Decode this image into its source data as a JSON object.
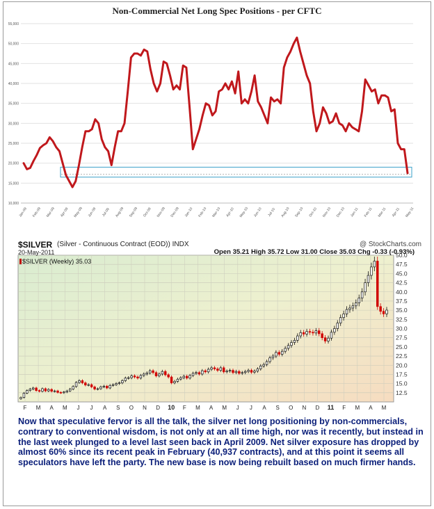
{
  "chart_data": [
    {
      "type": "line",
      "title": "Non-Commercial Net Long Spec Positions - per CFTC",
      "ylim": [
        10000,
        55000
      ],
      "y_ticks": [
        "10,000",
        "15,000",
        "20,000",
        "25,000",
        "30,000",
        "35,000",
        "40,000",
        "45,000",
        "50,000",
        "55,000"
      ],
      "x_ticks": [
        "Jan-09",
        "Feb-09",
        "Mar-09",
        "Apr-09",
        "May-09",
        "Jun-09",
        "Jul-09",
        "Aug-09",
        "Sep-09",
        "Oct-09",
        "Nov-09",
        "Dec-09",
        "Jan-10",
        "Feb-10",
        "Mar-10",
        "Apr-10",
        "May-10",
        "Jun-10",
        "Jul-10",
        "Aug-10",
        "Sep-10",
        "Oct-10",
        "Nov-10",
        "Dec-10",
        "Jan-11",
        "Feb-11",
        "Mar-11",
        "Apr-11",
        "May-11"
      ],
      "line_color": "#c0181c",
      "grid": true,
      "series": [
        {
          "values": [
            20000,
            18500,
            18800,
            20500,
            22000,
            23800,
            24500,
            25000,
            26500,
            25500,
            24000,
            23000,
            20000,
            17000,
            15500,
            14000,
            15500,
            19500,
            24000,
            28000,
            28000,
            28500,
            31000,
            30000,
            26000,
            24000,
            23000,
            19500,
            24000,
            28000,
            28000,
            30000,
            38000,
            46500,
            47500,
            47500,
            47000,
            48500,
            48000,
            43500,
            40000,
            38000,
            40000,
            45500,
            45000,
            42000,
            38500,
            39500,
            38500,
            44500,
            44000,
            34000,
            23500,
            26000,
            28500,
            32000,
            35000,
            34500,
            32000,
            33000,
            38000,
            38500,
            40000,
            38500,
            40500,
            37500,
            43000,
            35000,
            36000,
            35000,
            38000,
            42000,
            35500,
            34000,
            32000,
            30000,
            36500,
            35500,
            36000,
            35000,
            44000,
            46500,
            48000,
            50000,
            51500,
            48000,
            45000,
            42000,
            40000,
            33000,
            28000,
            30000,
            34000,
            32500,
            30000,
            30500,
            32500,
            30000,
            29500,
            28000,
            30000,
            29000,
            28500,
            28000,
            33000,
            41000,
            39500,
            38000,
            38500,
            35000,
            37000,
            37000,
            36500,
            33000,
            33500,
            25000,
            23500,
            23500,
            17500
          ]
        }
      ],
      "highlight_band": [
        16500,
        19000
      ]
    },
    {
      "type": "candlestick",
      "title": "$SILVER (Weekly) 35.03",
      "ylim": [
        10,
        50
      ],
      "y_ticks": [
        "12.5",
        "15.0",
        "17.5",
        "20.0",
        "22.5",
        "25.0",
        "27.5",
        "30.0",
        "32.5",
        "35.0",
        "37.5",
        "40.0",
        "42.5",
        "45.0",
        "47.5",
        "50.0"
      ],
      "x_ticks": [
        "F",
        "M",
        "A",
        "M",
        "J",
        "J",
        "A",
        "S",
        "O",
        "N",
        "D",
        "10",
        "F",
        "M",
        "A",
        "M",
        "J",
        "J",
        "A",
        "S",
        "O",
        "N",
        "D",
        "11",
        "F",
        "M",
        "A",
        "M"
      ],
      "closes": [
        11.2,
        12.4,
        13.1,
        13.5,
        13.8,
        13.1,
        12.9,
        13.6,
        13.0,
        13.4,
        12.9,
        13.0,
        12.6,
        12.5,
        12.7,
        13.0,
        13.5,
        14.2,
        15.3,
        15.8,
        15.2,
        14.6,
        14.7,
        14.1,
        13.5,
        13.6,
        14.1,
        14.3,
        13.8,
        14.5,
        14.7,
        15.0,
        15.2,
        15.8,
        16.5,
        16.6,
        17.1,
        16.8,
        16.5,
        17.2,
        17.6,
        17.9,
        18.5,
        18.0,
        17.1,
        17.6,
        18.3,
        17.4,
        16.8,
        15.2,
        15.6,
        16.2,
        16.6,
        17.0,
        16.5,
        17.2,
        17.8,
        18.0,
        17.6,
        18.5,
        18.2,
        18.9,
        19.3,
        19.0,
        18.6,
        19.3,
        18.2,
        18.4,
        18.6,
        18.0,
        18.3,
        17.8,
        18.0,
        18.3,
        18.6,
        18.1,
        18.4,
        19.0,
        19.8,
        20.2,
        21.0,
        22.0,
        22.5,
        23.5,
        23.0,
        23.8,
        24.6,
        25.4,
        26.2,
        26.8,
        28.0,
        28.9,
        28.5,
        29.2,
        29.0,
        28.8,
        29.4,
        28.6,
        27.5,
        26.6,
        27.4,
        29.0,
        30.0,
        31.5,
        33.0,
        34.0,
        35.2,
        35.6,
        36.2,
        37.0,
        38.3,
        40.0,
        42.5,
        44.5,
        46.8,
        48.4,
        36.0,
        34.7,
        34.0,
        35.03
      ],
      "price_axis": "right",
      "legend_text": "$SILVER (Weekly) 35.03"
    }
  ],
  "stock_header": {
    "symbol": "$SILVER",
    "description": "(Silver - Continuous Contract (EOD)) INDX",
    "date": "20-May-2011",
    "credit": "@ StockCharts.com",
    "open_label": "Open",
    "open": "35.21",
    "high_label": "High",
    "high": "35.72",
    "low_label": "Low",
    "low": "31.00",
    "close_label": "Close",
    "close": "35.03",
    "chg_label": "Chg",
    "chg": "-0.33 (-0.93%)"
  },
  "commentary": "Now that speculative fervor is all the talk, the silver net long positioning by non-commercials, contrary to conventional wisdom, is not only at an all time high, nor was it recently, but instead in the last week plunged to a level last seen back in April 2009. Net silver exposure has dropped by almost 60% since its recent peak in February (40,937 contracts), and at this point it seems all speculators have left the party. The new base is now being rebuilt based on much firmer hands."
}
